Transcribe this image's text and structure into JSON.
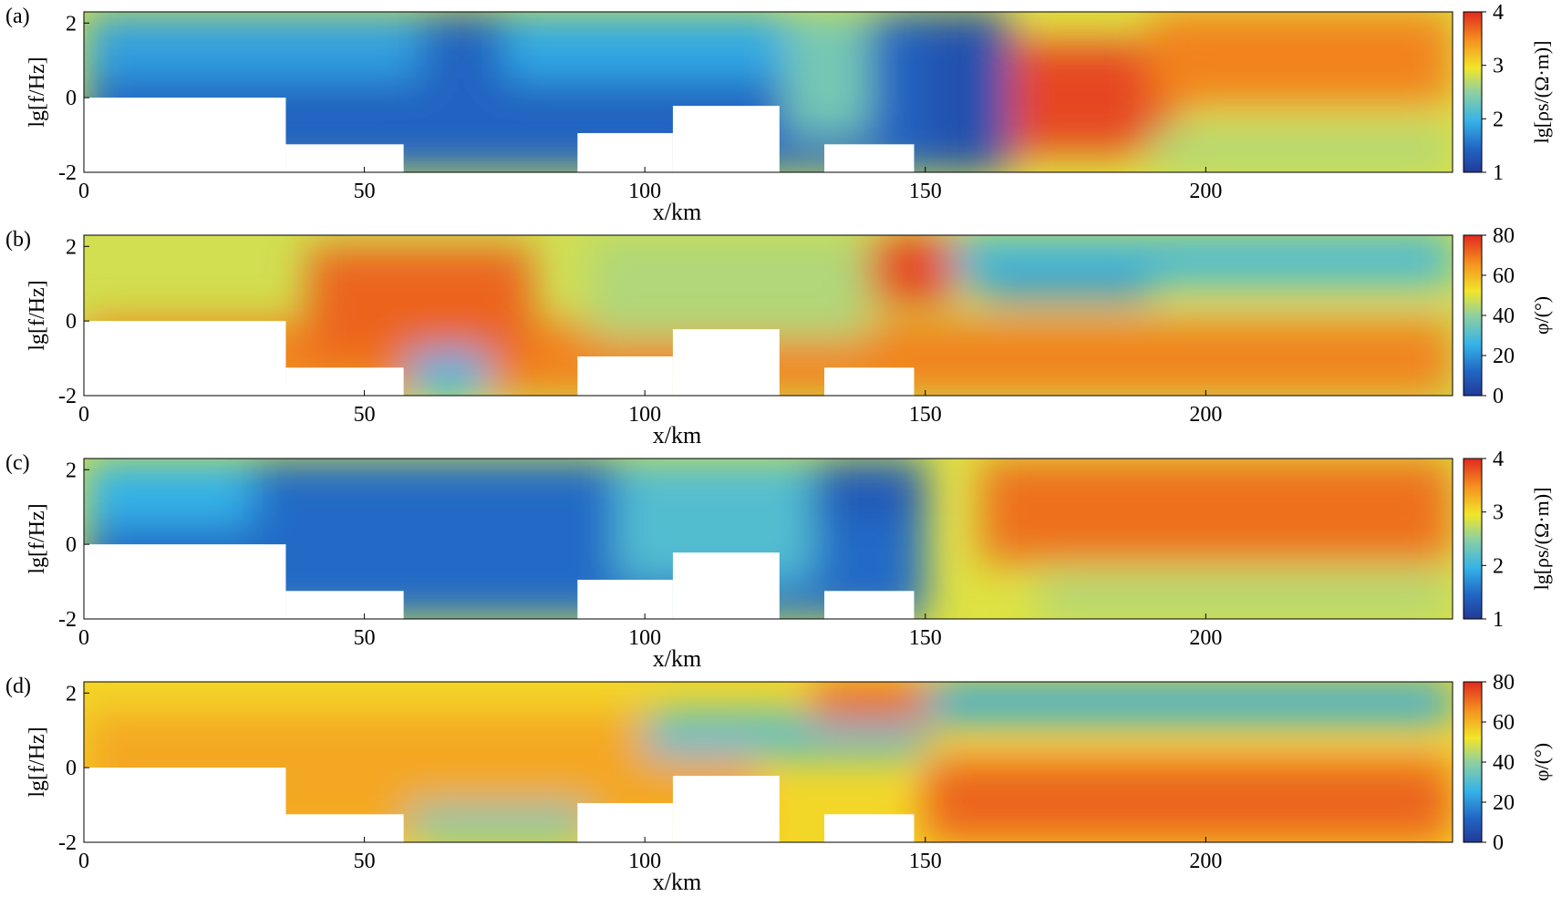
{
  "figure": {
    "panels": [
      {
        "label": "(a)",
        "colorbar_label": "lg[ρs/(Ω·m)]",
        "colorbar_ticks": [
          "1",
          "2",
          "3",
          "4"
        ]
      },
      {
        "label": "(b)",
        "colorbar_label": "φ/(°)",
        "colorbar_ticks": [
          "0",
          "20",
          "40",
          "60",
          "80"
        ]
      },
      {
        "label": "(c)",
        "colorbar_label": "lg[ρs/(Ω·m)]",
        "colorbar_ticks": [
          "1",
          "2",
          "3",
          "4"
        ]
      },
      {
        "label": "(d)",
        "colorbar_label": "φ/(°)",
        "colorbar_ticks": [
          "0",
          "20",
          "40",
          "60",
          "80"
        ]
      }
    ]
  },
  "chart_data": [
    {
      "type": "heatmap",
      "title": "(a)",
      "xlabel": "x/km",
      "ylabel": "lg[f/Hz]",
      "x_ticks": [
        "0",
        "50",
        "100",
        "150",
        "200"
      ],
      "y_ticks": [
        "-2",
        "0",
        "2"
      ],
      "xlim": [
        0,
        244
      ],
      "ylim": [
        -2,
        2.3
      ],
      "colorbar": {
        "label": "lg[ρs/(Ω·m)]",
        "range": [
          1,
          4
        ],
        "ticks": [
          "1",
          "2",
          "3",
          "4"
        ],
        "colormap": "jet"
      },
      "masked_regions_km_lgf": [
        [
          0,
          36,
          -2,
          0
        ],
        [
          36,
          57,
          -2,
          -1.25
        ],
        [
          88,
          105,
          -2,
          -0.95
        ],
        [
          105,
          124,
          -2,
          -0.22
        ],
        [
          132,
          148,
          -2,
          -1.25
        ]
      ],
      "field_description": "low values (~1.3) west of 160 km, high values (~3.8) around x=175-185 km near lg f=0, ~3.5 toward east"
    },
    {
      "type": "heatmap",
      "title": "(b)",
      "xlabel": "x/km",
      "ylabel": "lg[f/Hz]",
      "x_ticks": [
        "0",
        "50",
        "100",
        "150",
        "200"
      ],
      "y_ticks": [
        "-2",
        "0",
        "2"
      ],
      "xlim": [
        0,
        244
      ],
      "ylim": [
        -2,
        2.3
      ],
      "colorbar": {
        "label": "φ/(°)",
        "range": [
          0,
          80
        ],
        "ticks": [
          "0",
          "20",
          "40",
          "60",
          "80"
        ],
        "colormap": "jet"
      },
      "masked_regions_km_lgf": [
        [
          0,
          36,
          -2,
          0
        ],
        [
          36,
          57,
          -2,
          -1.25
        ],
        [
          88,
          105,
          -2,
          -0.95
        ],
        [
          105,
          124,
          -2,
          -0.22
        ],
        [
          132,
          148,
          -2,
          -1.25
        ]
      ]
    },
    {
      "type": "heatmap",
      "title": "(c)",
      "xlabel": "x/km",
      "ylabel": "lg[f/Hz]",
      "x_ticks": [
        "0",
        "50",
        "100",
        "150",
        "200"
      ],
      "y_ticks": [
        "-2",
        "0",
        "2"
      ],
      "xlim": [
        0,
        244
      ],
      "ylim": [
        -2,
        2.3
      ],
      "colorbar": {
        "label": "lg[ρs/(Ω·m)]",
        "range": [
          1,
          4
        ],
        "ticks": [
          "1",
          "2",
          "3",
          "4"
        ],
        "colormap": "jet"
      },
      "masked_regions_km_lgf": [
        [
          0,
          36,
          -2,
          0
        ],
        [
          36,
          57,
          -2,
          -1.25
        ],
        [
          88,
          105,
          -2,
          -0.95
        ],
        [
          105,
          124,
          -2,
          -0.22
        ],
        [
          132,
          148,
          -2,
          -1.25
        ]
      ]
    },
    {
      "type": "heatmap",
      "title": "(d)",
      "xlabel": "x/km",
      "ylabel": "lg[f/Hz]",
      "x_ticks": [
        "0",
        "50",
        "100",
        "150",
        "200"
      ],
      "y_ticks": [
        "-2",
        "0",
        "2"
      ],
      "xlim": [
        0,
        244
      ],
      "ylim": [
        -2,
        2.3
      ],
      "colorbar": {
        "label": "φ/(°)",
        "range": [
          0,
          80
        ],
        "ticks": [
          "0",
          "20",
          "40",
          "60",
          "80"
        ],
        "colormap": "jet"
      },
      "masked_regions_km_lgf": [
        [
          0,
          36,
          -2,
          0
        ],
        [
          36,
          57,
          -2,
          -1.25
        ],
        [
          88,
          105,
          -2,
          -0.95
        ],
        [
          105,
          124,
          -2,
          -0.22
        ],
        [
          132,
          148,
          -2,
          -1.25
        ]
      ]
    }
  ]
}
